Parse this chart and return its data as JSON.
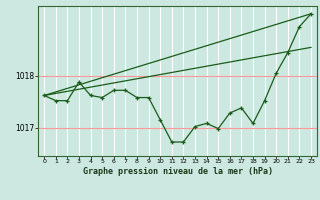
{
  "bg_color": "#cce8e0",
  "grid_color": "#ff9999",
  "line_color": "#1a5c1a",
  "title": "Graphe pression niveau de la mer (hPa)",
  "ylabel_ticks": [
    1017,
    1018
  ],
  "xlim": [
    -0.5,
    23.5
  ],
  "ylim": [
    1016.45,
    1019.35
  ],
  "line1_x": [
    0,
    23
  ],
  "line1_y": [
    1017.62,
    1019.2
  ],
  "line2_x": [
    0,
    23
  ],
  "line2_y": [
    1017.62,
    1018.55
  ],
  "line3_x": [
    0,
    1,
    2,
    3,
    4,
    5,
    6,
    7,
    8,
    9,
    10,
    11,
    12,
    13,
    14,
    15,
    16,
    17,
    18,
    19,
    20,
    21,
    22,
    23
  ],
  "line3_y": [
    1017.62,
    1017.52,
    1017.52,
    1017.88,
    1017.62,
    1017.58,
    1017.72,
    1017.72,
    1017.58,
    1017.58,
    1017.15,
    1016.72,
    1016.72,
    1017.02,
    1017.08,
    1016.98,
    1017.28,
    1017.38,
    1017.08,
    1017.52,
    1018.05,
    1018.45,
    1018.95,
    1019.2
  ]
}
